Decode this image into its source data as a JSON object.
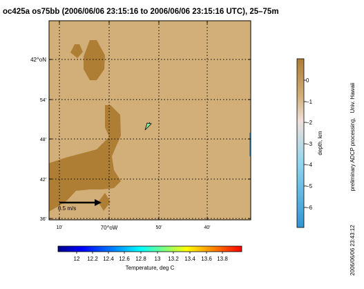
{
  "title": "oc425a os75bb (2006/06/06 23:15:16 to 2006/06/06 23:15:16 UTC), 25–75m",
  "map": {
    "y_ticks": [
      "42^oN",
      "54'",
      "48'",
      "42'",
      "36'"
    ],
    "x_ticks": [
      "10'",
      "70^oW",
      "50'",
      "40'"
    ],
    "land_color": "#D2AE78",
    "shallow_color": "#AE7E34",
    "grid": true
  },
  "scale_arrow": {
    "label": "0.5 m/s",
    "value_m_s": 0.5
  },
  "vector": {
    "color": "#7EF0A0",
    "count": 1
  },
  "depth_colorbar": {
    "label": "depth, km",
    "ticks": [
      "0",
      "−1",
      "−2",
      "−3",
      "−4",
      "−5",
      "−6"
    ],
    "colors_top_to_bottom": [
      "#AE7E34",
      "#D2AE78",
      "#F0E0DA",
      "#8FD6F0",
      "#2E96D6"
    ],
    "range": [
      -6.7,
      1.0
    ]
  },
  "temp_colorbar": {
    "label": "Temperature, deg C",
    "ticks": [
      "12",
      "12.2",
      "12.4",
      "12.6",
      "12.8",
      "13",
      "13.2",
      "13.4",
      "13.6",
      "13.8"
    ],
    "colors": [
      "#00008F",
      "#0000FF",
      "#0080FF",
      "#00FFFF",
      "#80FF80",
      "#FFFF00",
      "#FF8000",
      "#FF0000"
    ]
  },
  "credit": "preliminary ADCP processing,   Univ. Hawaii",
  "timestamp": "2006/06/06 23:43:12",
  "chart_data": {
    "type": "heatmap",
    "title": "oc425a os75bb (2006/06/06 23:15:16 to 2006/06/06 23:15:16 UTC), 25–75m",
    "xlabel": "",
    "ylabel": "",
    "depth_label": "depth, km",
    "temperature_label": "Temperature, deg C",
    "depth_range_km": [
      -6.7,
      1.0
    ],
    "temperature_range_degC": [
      11.8,
      14.0
    ],
    "temperature_ticks": [
      12,
      12.2,
      12.4,
      12.6,
      12.8,
      13,
      13.2,
      13.4,
      13.6,
      13.8
    ],
    "depth_ticks_km": [
      0,
      -1,
      -2,
      -3,
      -4,
      -5,
      -6
    ],
    "scale_vector_m_s": 0.5
  }
}
